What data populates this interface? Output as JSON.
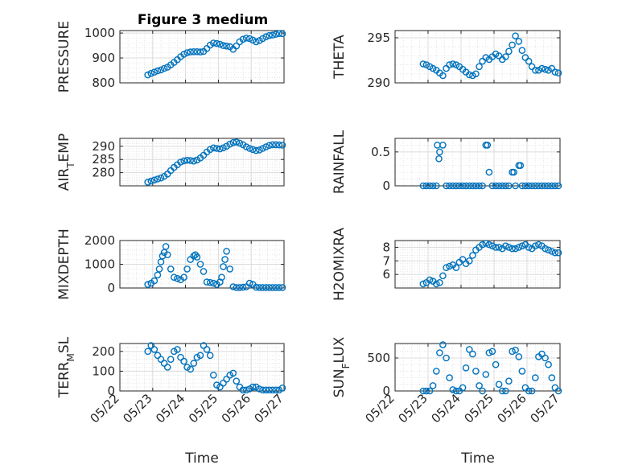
{
  "figure": {
    "title": "Figure 3 medium",
    "xlabel": "Time",
    "x_ticks": [
      "05/22",
      "05/23",
      "05/24",
      "05/25",
      "05/26",
      "05/27"
    ],
    "marker_color": "#0072BD"
  },
  "chart_data": [
    {
      "type": "scatter",
      "ylabel": "PRESSURE",
      "ylim": [
        800,
        1010
      ],
      "yticks": [
        800,
        900,
        1000
      ],
      "xlim": [
        22,
        27
      ],
      "grid": true,
      "x": [
        22.85,
        22.95,
        23.05,
        23.15,
        23.25,
        23.35,
        23.45,
        23.55,
        23.65,
        23.75,
        23.85,
        23.95,
        24.05,
        24.15,
        24.25,
        24.35,
        24.45,
        24.55,
        24.65,
        24.75,
        24.85,
        24.95,
        25.05,
        25.15,
        25.25,
        25.35,
        25.45,
        25.55,
        25.65,
        25.75,
        25.85,
        25.95,
        26.05,
        26.15,
        26.25,
        26.35,
        26.45,
        26.55,
        26.65,
        26.75,
        26.85,
        26.95
      ],
      "y": [
        832,
        838,
        843,
        848,
        852,
        858,
        863,
        872,
        882,
        893,
        905,
        915,
        921,
        924,
        925,
        925,
        924,
        926,
        938,
        952,
        960,
        958,
        955,
        950,
        948,
        945,
        935,
        948,
        965,
        975,
        980,
        978,
        972,
        965,
        970,
        978,
        985,
        990,
        992,
        995,
        998,
        997
      ]
    },
    {
      "type": "scatter",
      "ylabel": "THETA",
      "ylim": [
        290,
        295.8
      ],
      "yticks": [
        290,
        295
      ],
      "xlim": [
        22,
        27
      ],
      "grid": true,
      "x": [
        22.85,
        22.95,
        23.05,
        23.15,
        23.25,
        23.35,
        23.45,
        23.55,
        23.65,
        23.75,
        23.85,
        23.95,
        24.05,
        24.15,
        24.25,
        24.35,
        24.45,
        24.55,
        24.65,
        24.75,
        24.85,
        24.95,
        25.05,
        25.15,
        25.25,
        25.35,
        25.45,
        25.55,
        25.65,
        25.75,
        25.85,
        25.95,
        26.05,
        26.15,
        26.25,
        26.35,
        26.45,
        26.55,
        26.65,
        26.75,
        26.85,
        26.95
      ],
      "y": [
        292.1,
        292.0,
        291.8,
        291.6,
        291.4,
        291.1,
        290.8,
        291.6,
        292.0,
        292.1,
        292.0,
        291.8,
        291.5,
        291.2,
        290.9,
        290.8,
        291.0,
        291.8,
        292.4,
        292.8,
        292.6,
        292.9,
        293.2,
        293.0,
        292.6,
        292.9,
        293.5,
        294.2,
        295.2,
        294.6,
        293.6,
        292.8,
        292.4,
        291.8,
        291.4,
        291.4,
        291.6,
        291.5,
        291.4,
        291.6,
        291.2,
        291.1
      ]
    },
    {
      "type": "scatter",
      "ylabel": "AIR_TEMP",
      "ylim": [
        275,
        293
      ],
      "yticks": [
        280,
        285,
        290
      ],
      "xlim": [
        22,
        27
      ],
      "grid": true,
      "x": [
        22.85,
        22.95,
        23.05,
        23.15,
        23.25,
        23.35,
        23.45,
        23.55,
        23.65,
        23.75,
        23.85,
        23.95,
        24.05,
        24.15,
        24.25,
        24.35,
        24.45,
        24.55,
        24.65,
        24.75,
        24.85,
        24.95,
        25.05,
        25.15,
        25.25,
        25.35,
        25.45,
        25.55,
        25.65,
        25.75,
        25.85,
        25.95,
        26.05,
        26.15,
        26.25,
        26.35,
        26.45,
        26.55,
        26.65,
        26.75,
        26.85,
        26.95
      ],
      "y": [
        276.4,
        276.8,
        277.2,
        277.6,
        278.0,
        278.6,
        279.5,
        280.8,
        282.0,
        283.0,
        284.0,
        284.5,
        284.7,
        284.6,
        284.4,
        284.8,
        285.6,
        286.6,
        287.8,
        288.8,
        289.4,
        289.2,
        289.0,
        289.4,
        290.0,
        290.8,
        291.4,
        291.6,
        291.2,
        290.6,
        289.8,
        289.2,
        288.8,
        288.4,
        288.6,
        289.2,
        289.8,
        290.3,
        290.6,
        290.6,
        290.5,
        290.4
      ]
    },
    {
      "type": "scatter",
      "ylabel": "RAINFALL",
      "ylim": [
        0,
        0.7
      ],
      "yticks": [
        0,
        0.5
      ],
      "xlim": [
        22,
        27
      ],
      "grid": true,
      "x": [
        22.85,
        22.95,
        23.05,
        23.15,
        23.25,
        23.28,
        23.33,
        23.35,
        23.45,
        23.55,
        23.65,
        23.75,
        23.85,
        23.95,
        24.05,
        24.15,
        24.25,
        24.35,
        24.45,
        24.55,
        24.65,
        24.75,
        24.8,
        24.85,
        24.95,
        25.05,
        25.15,
        25.25,
        25.35,
        25.45,
        25.55,
        25.6,
        25.65,
        25.75,
        25.8,
        25.85,
        25.95,
        26.05,
        26.15,
        26.25,
        26.35,
        26.45,
        26.55,
        26.65,
        26.75,
        26.85,
        26.95
      ],
      "y": [
        0,
        0,
        0,
        0,
        0,
        0.6,
        0.4,
        0.5,
        0.6,
        0,
        0,
        0,
        0,
        0,
        0,
        0,
        0,
        0,
        0,
        0,
        0,
        0.6,
        0.6,
        0.2,
        0,
        0,
        0,
        0,
        0,
        0,
        0.2,
        0.2,
        0,
        0.3,
        0.3,
        0,
        0,
        0,
        0,
        0,
        0,
        0,
        0,
        0,
        0,
        0,
        0
      ]
    },
    {
      "type": "scatter",
      "ylabel": "MIXDEPTH",
      "ylim": [
        0,
        2000
      ],
      "yticks": [
        0,
        1000,
        2000
      ],
      "xlim": [
        22,
        27
      ],
      "grid": true,
      "x": [
        22.85,
        22.95,
        23.05,
        23.15,
        23.2,
        23.25,
        23.3,
        23.35,
        23.4,
        23.45,
        23.55,
        23.65,
        23.75,
        23.85,
        23.95,
        24.05,
        24.15,
        24.25,
        24.3,
        24.35,
        24.45,
        24.55,
        24.65,
        24.75,
        24.85,
        24.95,
        25.05,
        25.1,
        25.15,
        25.2,
        25.25,
        25.35,
        25.45,
        25.55,
        25.65,
        25.75,
        25.85,
        25.95,
        26.05,
        26.15,
        26.25,
        26.35,
        26.45,
        26.55,
        26.65,
        26.75,
        26.85,
        26.95
      ],
      "y": [
        150,
        200,
        300,
        550,
        800,
        1100,
        1350,
        1500,
        1750,
        1400,
        800,
        450,
        400,
        350,
        450,
        800,
        1200,
        1350,
        1400,
        1300,
        1000,
        700,
        250,
        230,
        200,
        150,
        250,
        450,
        900,
        1200,
        1550,
        800,
        50,
        20,
        20,
        30,
        50,
        200,
        150,
        30,
        20,
        20,
        20,
        20,
        20,
        20,
        20,
        20
      ]
    },
    {
      "type": "scatter",
      "ylabel": "H2OMIXRA",
      "ylim": [
        5,
        8.5
      ],
      "yticks": [
        6,
        7,
        8
      ],
      "xlim": [
        22,
        27
      ],
      "grid": true,
      "x": [
        22.85,
        22.95,
        23.05,
        23.15,
        23.25,
        23.35,
        23.45,
        23.55,
        23.65,
        23.75,
        23.85,
        23.95,
        24.05,
        24.15,
        24.25,
        24.35,
        24.45,
        24.55,
        24.65,
        24.75,
        24.85,
        24.95,
        25.05,
        25.15,
        25.25,
        25.35,
        25.45,
        25.55,
        25.65,
        25.75,
        25.85,
        25.95,
        26.05,
        26.15,
        26.25,
        26.35,
        26.45,
        26.55,
        26.65,
        26.75,
        26.85,
        26.95
      ],
      "y": [
        5.3,
        5.4,
        5.6,
        5.5,
        5.3,
        5.4,
        5.9,
        6.5,
        6.6,
        6.7,
        6.5,
        6.9,
        7.1,
        6.8,
        7.0,
        7.4,
        7.8,
        8.0,
        8.2,
        8.3,
        8.2,
        8.1,
        8.0,
        8.0,
        7.9,
        8.1,
        8.0,
        7.9,
        7.9,
        8.0,
        8.1,
        8.2,
        8.0,
        7.9,
        8.1,
        8.2,
        8.1,
        7.9,
        7.8,
        7.7,
        7.6,
        7.6
      ]
    },
    {
      "type": "scatter",
      "ylabel": "TERR_MSL",
      "ylim": [
        0,
        240
      ],
      "yticks": [
        0,
        100,
        200
      ],
      "xlim": [
        22,
        27
      ],
      "grid": true,
      "x": [
        22.85,
        22.95,
        23.05,
        23.15,
        23.25,
        23.35,
        23.45,
        23.55,
        23.65,
        23.75,
        23.85,
        23.95,
        24.05,
        24.15,
        24.25,
        24.35,
        24.45,
        24.55,
        24.65,
        24.75,
        24.85,
        24.95,
        25.05,
        25.15,
        25.25,
        25.35,
        25.45,
        25.55,
        25.65,
        25.75,
        25.85,
        25.95,
        26.05,
        26.15,
        26.25,
        26.35,
        26.45,
        26.55,
        26.65,
        26.75,
        26.85,
        26.95
      ],
      "y": [
        200,
        230,
        210,
        180,
        160,
        140,
        120,
        160,
        200,
        210,
        170,
        150,
        120,
        110,
        140,
        170,
        180,
        230,
        210,
        180,
        80,
        30,
        20,
        40,
        60,
        80,
        90,
        50,
        20,
        5,
        5,
        10,
        20,
        20,
        10,
        5,
        5,
        5,
        5,
        5,
        5,
        15
      ]
    },
    {
      "type": "scatter",
      "ylabel": "SUN_FLUX",
      "ylim": [
        0,
        720
      ],
      "yticks": [
        0,
        500
      ],
      "xlim": [
        22,
        27
      ],
      "grid": true,
      "x": [
        22.85,
        22.95,
        23.05,
        23.15,
        23.25,
        23.35,
        23.45,
        23.55,
        23.65,
        23.75,
        23.85,
        23.95,
        24.05,
        24.15,
        24.25,
        24.35,
        24.45,
        24.55,
        24.65,
        24.75,
        24.85,
        24.95,
        25.05,
        25.15,
        25.25,
        25.35,
        25.45,
        25.55,
        25.65,
        25.75,
        25.85,
        25.95,
        26.05,
        26.15,
        26.25,
        26.35,
        26.45,
        26.55,
        26.65,
        26.75,
        26.85,
        26.95
      ],
      "y": [
        0,
        0,
        0,
        80,
        300,
        580,
        700,
        500,
        200,
        20,
        0,
        0,
        50,
        350,
        630,
        560,
        300,
        80,
        0,
        250,
        580,
        600,
        400,
        100,
        0,
        0,
        150,
        600,
        620,
        520,
        300,
        50,
        0,
        0,
        200,
        520,
        560,
        500,
        400,
        200,
        50,
        0
      ]
    }
  ]
}
